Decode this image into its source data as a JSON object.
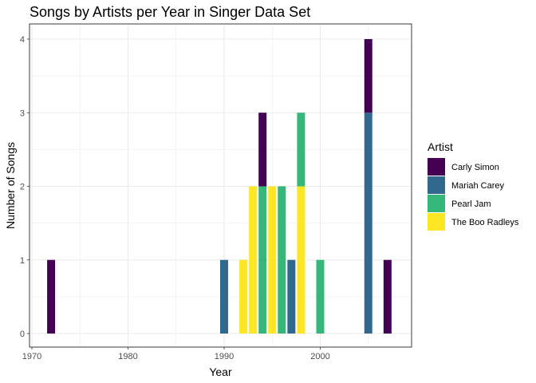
{
  "chart_data": {
    "type": "bar",
    "stacked": true,
    "title": "Songs by Artists per Year in Singer Data Set",
    "xlabel": "Year",
    "ylabel": "Number of Songs",
    "xlim": [
      1970,
      2008
    ],
    "ylim": [
      0,
      4
    ],
    "x_ticks": [
      1970,
      1980,
      1990,
      2000
    ],
    "y_ticks": [
      0,
      1,
      2,
      3,
      4
    ],
    "grid": true,
    "legend": {
      "title": "Artist",
      "placement": "right",
      "entries": [
        "Carly Simon",
        "Mariah Carey",
        "Pearl Jam",
        "The Boo Radleys"
      ]
    },
    "series": [
      {
        "name": "Carly Simon",
        "color": "#440154",
        "points": [
          {
            "x": 1972,
            "y": 1
          },
          {
            "x": 1994,
            "y": 1
          },
          {
            "x": 2005,
            "y": 1
          },
          {
            "x": 2007,
            "y": 1
          }
        ]
      },
      {
        "name": "Mariah Carey",
        "color": "#31688E",
        "points": [
          {
            "x": 1990,
            "y": 1
          },
          {
            "x": 1997,
            "y": 1
          },
          {
            "x": 2005,
            "y": 3
          }
        ]
      },
      {
        "name": "Pearl Jam",
        "color": "#35B779",
        "points": [
          {
            "x": 1994,
            "y": 2
          },
          {
            "x": 1996,
            "y": 2
          },
          {
            "x": 1998,
            "y": 1
          },
          {
            "x": 2000,
            "y": 1
          }
        ]
      },
      {
        "name": "The Boo Radleys",
        "color": "#FDE725",
        "points": [
          {
            "x": 1992,
            "y": 1
          },
          {
            "x": 1993,
            "y": 2
          },
          {
            "x": 1995,
            "y": 2
          },
          {
            "x": 1998,
            "y": 2
          }
        ]
      }
    ]
  }
}
